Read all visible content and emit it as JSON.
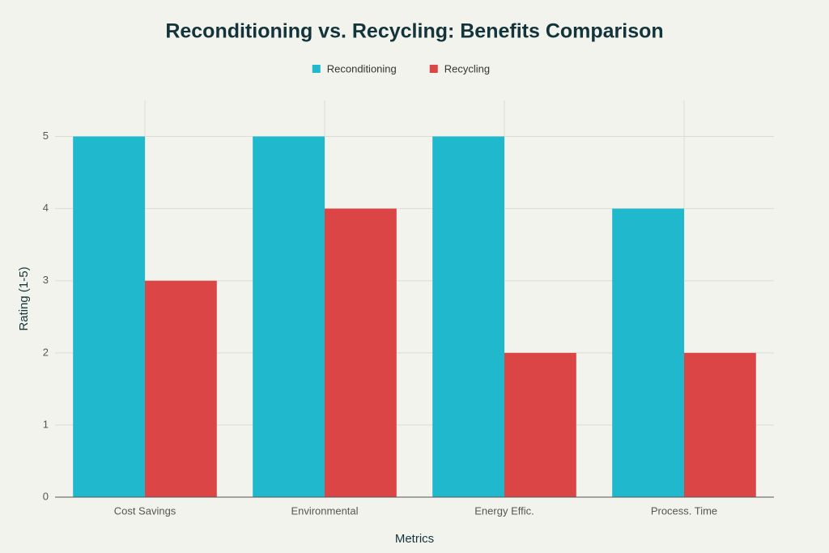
{
  "chart_data": {
    "type": "bar",
    "title": "Reconditioning vs. Recycling: Benefits Comparison",
    "x_label": "Metrics",
    "y_label": "Rating (1-5)",
    "categories": [
      "Cost Savings",
      "Environmental",
      "Energy Effic.",
      "Process. Time"
    ],
    "series": [
      {
        "name": "Reconditioning",
        "color": "#1fb8cd",
        "values": [
          5,
          5,
          5,
          4
        ]
      },
      {
        "name": "Recycling",
        "color": "#db4545",
        "values": [
          3,
          4,
          2,
          2
        ]
      }
    ],
    "ylim": [
      0,
      5.5
    ],
    "yticks": [
      0,
      1,
      2,
      3,
      4,
      5
    ],
    "grid": true,
    "legend": "top"
  }
}
